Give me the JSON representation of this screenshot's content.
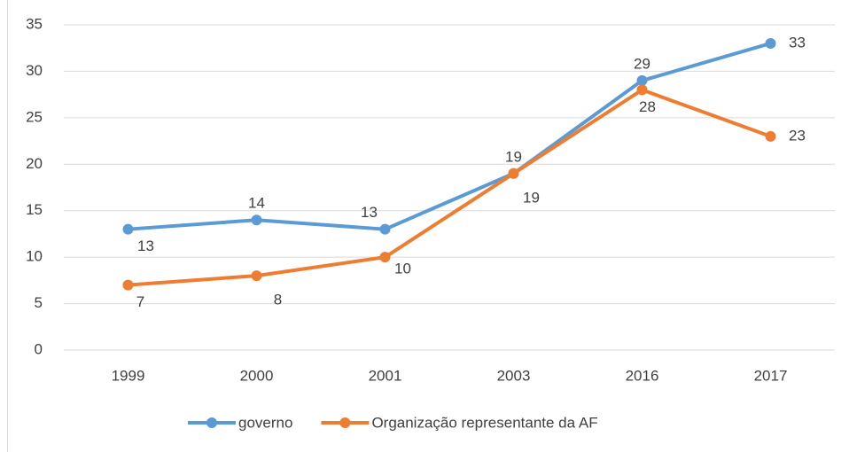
{
  "chart_data": {
    "type": "line",
    "categories": [
      "1999",
      "2000",
      "2001",
      "2003",
      "2016",
      "2017"
    ],
    "series": [
      {
        "name": "governo",
        "color": "#5b9bd5",
        "values": [
          13,
          14,
          13,
          19,
          29,
          33
        ]
      },
      {
        "name": "Organização representante da AF",
        "color": "#ed7d31",
        "values": [
          7,
          8,
          10,
          19,
          28,
          23
        ]
      }
    ],
    "ylim": [
      0,
      35
    ],
    "yticks": [
      0,
      5,
      10,
      15,
      20,
      25,
      30,
      35
    ],
    "grid": true,
    "legend": "bottom"
  }
}
